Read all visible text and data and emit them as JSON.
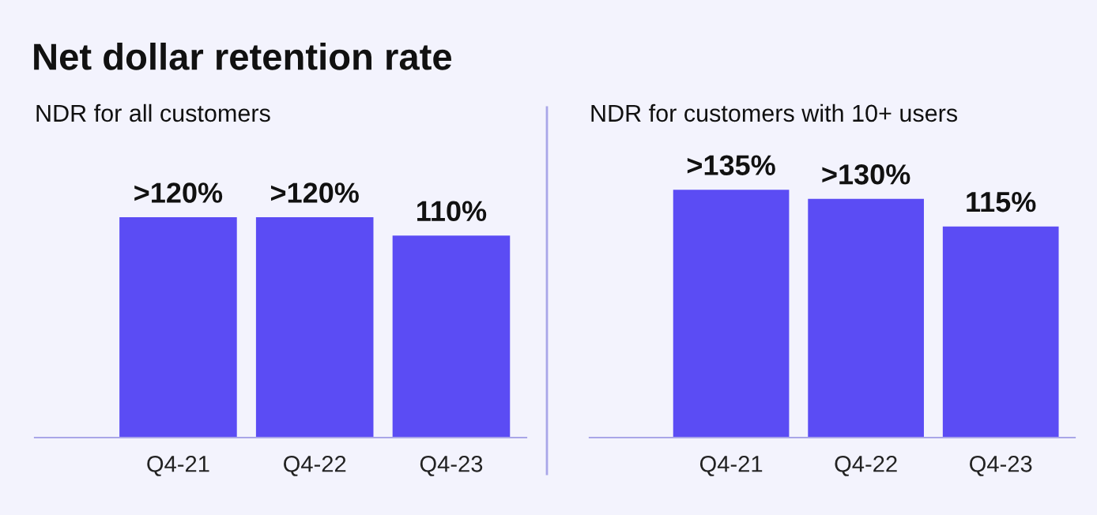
{
  "chart_data": [
    {
      "type": "bar",
      "title": "Net dollar retention rate",
      "subtitle": "NDR for all customers",
      "categories": [
        "Q4-21",
        "Q4-22",
        "Q4-23"
      ],
      "values": [
        120,
        120,
        110
      ],
      "value_labels": [
        ">120%",
        ">120%",
        "110%"
      ],
      "color": "#5b4cf4",
      "grid": false,
      "legend": false
    },
    {
      "type": "bar",
      "title": "NDR for customers with 10+ users",
      "categories": [
        "Q4-21",
        "Q4-22",
        "Q4-23"
      ],
      "values": [
        135,
        130,
        115
      ],
      "value_labels": [
        ">135%",
        ">130%",
        "115%"
      ],
      "color": "#5b4cf4",
      "grid": false,
      "legend": false
    }
  ]
}
